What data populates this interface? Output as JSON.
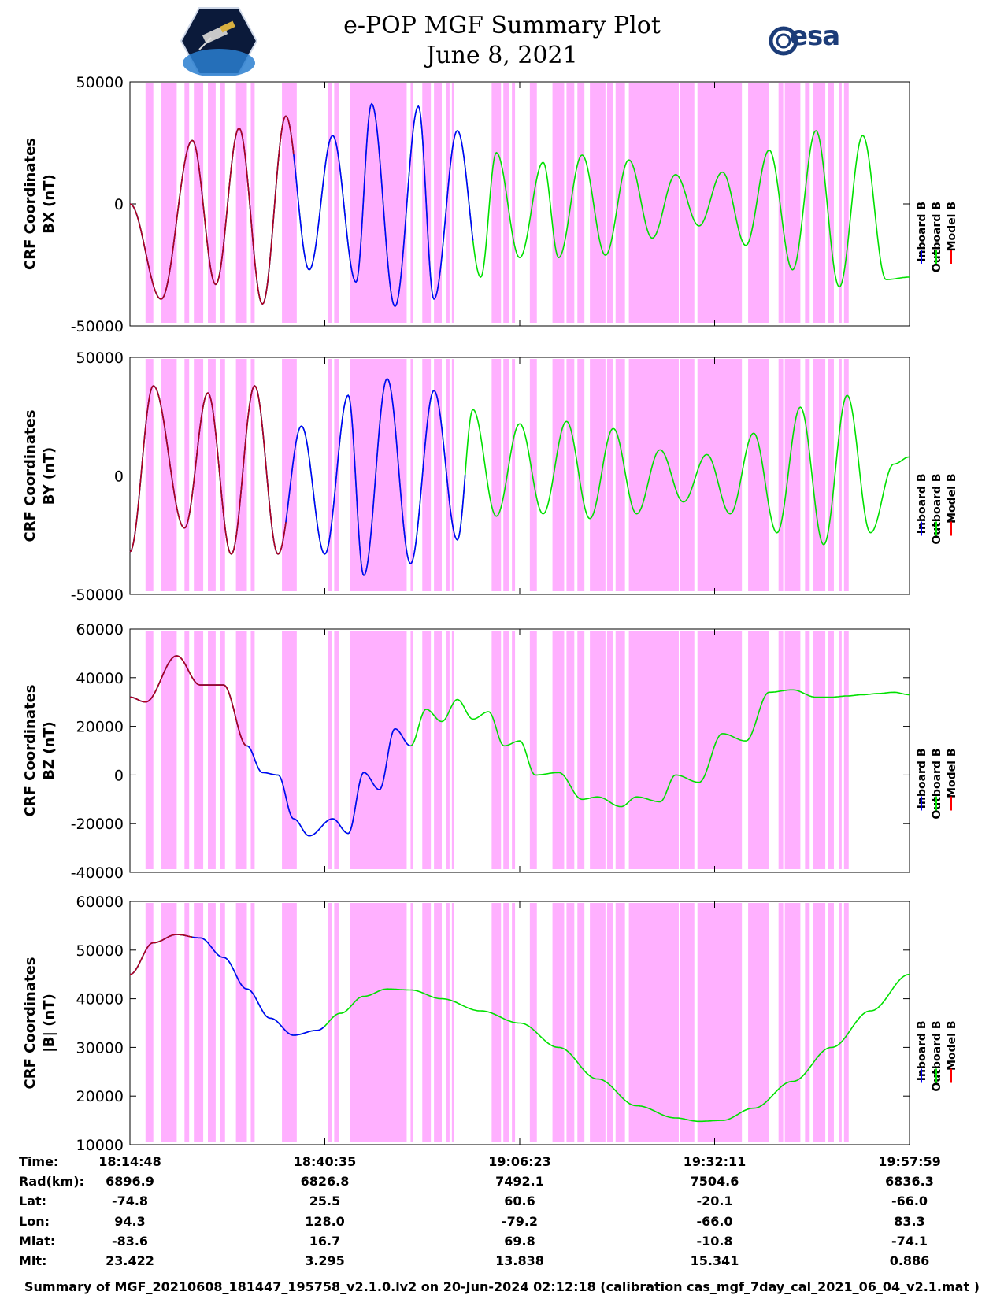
{
  "header": {
    "title_line1": "e-POP MGF Summary Plot",
    "title_line2": "June 8, 2021",
    "logo_right_text": "esa"
  },
  "colors": {
    "shade": "#ffb0ff",
    "inboard": "#0000ff",
    "outboard": "#00e000",
    "model": "#ff0000",
    "model_trace": "#b00020"
  },
  "legend": {
    "inboard": "Inboard B",
    "outboard": "Outboard B",
    "model": "Model B"
  },
  "chart_data": [
    {
      "type": "line",
      "title": "",
      "ylabel_line1": "CRF Coordinates",
      "ylabel_line2": "BX (nT)",
      "ylim": [
        -50000,
        50000
      ],
      "yticks": [
        -50000,
        0,
        50000
      ],
      "ytick_labels": [
        "-50000",
        "0",
        "50000"
      ],
      "trace": {
        "t": [
          0,
          4,
          8,
          11,
          14,
          17,
          20,
          23,
          26,
          29,
          31,
          34,
          37,
          39,
          42,
          45,
          47,
          50,
          53,
          55,
          58,
          61,
          64,
          67,
          70,
          73,
          76,
          79,
          82,
          85,
          88,
          91,
          94,
          97,
          100
        ],
        "v": [
          0,
          -39000,
          26000,
          -33000,
          31000,
          -41000,
          36000,
          -27000,
          28000,
          -32000,
          41000,
          -42000,
          40000,
          -39000,
          30000,
          -30000,
          21000,
          -22000,
          17000,
          -22000,
          20000,
          -21000,
          18000,
          -14000,
          12000,
          -9000,
          13000,
          -17000,
          22000,
          -27000,
          30000,
          -34000,
          28000,
          -31000,
          -30000
        ],
        "model_until": 21,
        "inboard_until": 44
      }
    },
    {
      "type": "line",
      "title": "",
      "ylabel_line1": "CRF Coordinates",
      "ylabel_line2": "BY (nT)",
      "ylim": [
        -50000,
        50000
      ],
      "yticks": [
        -50000,
        0,
        50000
      ],
      "ytick_labels": [
        "-50000",
        "0",
        "50000"
      ],
      "trace": {
        "t": [
          0,
          3,
          7,
          10,
          13,
          16,
          19,
          22,
          25,
          28,
          30,
          33,
          36,
          39,
          42,
          44,
          47,
          50,
          53,
          56,
          59,
          62,
          65,
          68,
          71,
          74,
          77,
          80,
          83,
          86,
          89,
          92,
          95,
          98,
          100
        ],
        "v": [
          -32000,
          38000,
          -22000,
          35000,
          -33000,
          38000,
          -33000,
          21000,
          -33000,
          34000,
          -42000,
          41000,
          -37000,
          36000,
          -27000,
          28000,
          -17000,
          22000,
          -16000,
          23000,
          -18000,
          20000,
          -16000,
          11000,
          -11000,
          9000,
          -16000,
          18000,
          -24000,
          29000,
          -29000,
          34000,
          -24000,
          5000,
          8000
        ],
        "model_until": 20,
        "inboard_until": 43
      }
    },
    {
      "type": "line",
      "title": "",
      "ylabel_line1": "CRF Coordinates",
      "ylabel_line2": "BZ (nT)",
      "ylim": [
        -40000,
        60000
      ],
      "yticks": [
        -40000,
        -20000,
        0,
        20000,
        40000,
        60000
      ],
      "ytick_labels": [
        "-40000",
        "-20000",
        "0",
        "20000",
        "40000",
        "60000"
      ],
      "trace": {
        "t": [
          0,
          2,
          6,
          9,
          12,
          15,
          17,
          19,
          21,
          23,
          26,
          28,
          30,
          32,
          34,
          36,
          38,
          40,
          42,
          44,
          46,
          48,
          50,
          52,
          55,
          58,
          60,
          63,
          65,
          68,
          70,
          73,
          76,
          79,
          82,
          85,
          88,
          90,
          92,
          94,
          96,
          98,
          100
        ],
        "v": [
          32000,
          30000,
          49000,
          37000,
          37000,
          12000,
          1000,
          0,
          -18000,
          -25000,
          -18000,
          -24000,
          1000,
          -6000,
          19000,
          12000,
          27000,
          22000,
          31000,
          23000,
          26000,
          12000,
          14000,
          0,
          1000,
          -10000,
          -9000,
          -13000,
          -9000,
          -11000,
          0,
          -3000,
          17000,
          14000,
          34000,
          35000,
          32000,
          32000,
          32500,
          33000,
          33500,
          34000,
          33000
        ],
        "model_until": 15,
        "inboard_until": 36,
        "truncate": 100
      }
    },
    {
      "type": "line",
      "title": "",
      "ylabel_line1": "CRF Coordinates",
      "ylabel_line2": "|B| (nT)",
      "ylim": [
        10000,
        60000
      ],
      "yticks": [
        10000,
        20000,
        30000,
        40000,
        50000,
        60000
      ],
      "ytick_labels": [
        "10000",
        "20000",
        "30000",
        "40000",
        "50000",
        "60000"
      ],
      "trace": {
        "t": [
          0,
          3,
          6,
          9,
          12,
          15,
          18,
          21,
          24,
          27,
          30,
          33,
          36,
          40,
          45,
          50,
          55,
          60,
          65,
          70,
          73,
          76,
          80,
          85,
          90,
          95,
          100
        ],
        "v": [
          45000,
          51500,
          53200,
          52500,
          48500,
          42000,
          36000,
          32500,
          33500,
          37000,
          40500,
          42000,
          41800,
          40000,
          37500,
          35000,
          30000,
          23500,
          18000,
          15500,
          14800,
          15000,
          17500,
          23000,
          30000,
          37500,
          45000
        ],
        "model_until": 8,
        "inboard_until": 25
      }
    }
  ],
  "shade_regions": [
    [
      2,
      3
    ],
    [
      4,
      6
    ],
    [
      7,
      7.6
    ],
    [
      8.2,
      9.4
    ],
    [
      10,
      11
    ],
    [
      11.6,
      12.2
    ],
    [
      13.6,
      15
    ],
    [
      15.5,
      16
    ],
    [
      19.5,
      21.4
    ],
    [
      25.4,
      25.9
    ],
    [
      26.2,
      26.8
    ],
    [
      28.2,
      35.5
    ],
    [
      36,
      36.3
    ],
    [
      37.5,
      38.6
    ],
    [
      39,
      40
    ],
    [
      40.6,
      41
    ],
    [
      41.3,
      41.6
    ],
    [
      46.4,
      47.6
    ],
    [
      47.9,
      48.6
    ],
    [
      49,
      49.4
    ],
    [
      51.3,
      52.2
    ],
    [
      54.2,
      55.7
    ],
    [
      56,
      57
    ],
    [
      57.4,
      58.3
    ],
    [
      59,
      61
    ],
    [
      61.2,
      62
    ],
    [
      62.3,
      63.5
    ],
    [
      64,
      70.4
    ],
    [
      70.6,
      72.4
    ],
    [
      72.8,
      78.5
    ],
    [
      79.3,
      82
    ],
    [
      83.2,
      83.8
    ],
    [
      84,
      86
    ],
    [
      86.6,
      87.2
    ],
    [
      87.6,
      89.2
    ],
    [
      89.5,
      90.3
    ],
    [
      91,
      91.3
    ],
    [
      91.6,
      92.2
    ]
  ],
  "xaxis": {
    "row_labels": [
      "Time:",
      "Rad(km):",
      "Lat:",
      "Lon:",
      "Mlat:",
      "Mlt:"
    ],
    "columns": [
      {
        "time": "18:14:48",
        "rad": "6896.9",
        "lat": "-74.8",
        "lon": "94.3",
        "mlat": "-83.6",
        "mlt": "23.422"
      },
      {
        "time": "18:40:35",
        "rad": "6826.8",
        "lat": "25.5",
        "lon": "128.0",
        "mlat": "16.7",
        "mlt": "3.295"
      },
      {
        "time": "19:06:23",
        "rad": "7492.1",
        "lat": "60.6",
        "lon": "-79.2",
        "mlat": "69.8",
        "mlt": "13.838"
      },
      {
        "time": "19:32:11",
        "rad": "7504.6",
        "lat": "-20.1",
        "lon": "-66.0",
        "mlat": "-10.8",
        "mlt": "15.341"
      },
      {
        "time": "19:57:59",
        "rad": "6836.3",
        "lat": "-66.0",
        "lon": "83.3",
        "mlat": "-74.1",
        "mlt": "0.886"
      }
    ]
  },
  "footer": "Summary of MGF_20210608_181447_195758_v2.1.0.lv2 on 20-Jun-2024 02:12:18 (calibration cas_mgf_7day_cal_2021_06_04_v2.1.mat )"
}
